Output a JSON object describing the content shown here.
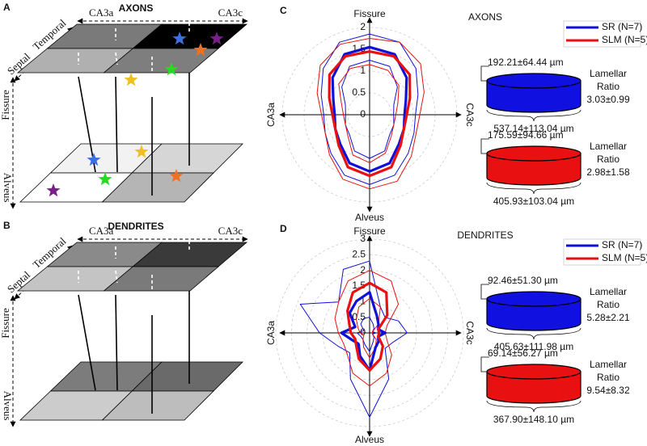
{
  "panel_a": {
    "letter": "A",
    "title": "AXONS",
    "x_start": "CA3a",
    "x_end": "CA3c",
    "depth_start": "Septal",
    "depth_end": "Temporal",
    "z_top": "Fissure",
    "z_bottom": "Alveus"
  },
  "panel_b": {
    "letter": "B",
    "title": "DENDRITES",
    "x_start": "CA3a",
    "x_end": "CA3c",
    "depth_start": "Septal",
    "depth_end": "Temporal",
    "z_top": "Fissure",
    "z_bottom": "Alveus"
  },
  "chart_data": [
    {
      "type": "radar",
      "letter": "C",
      "title": "AXONS",
      "axis_labels": {
        "top": "Fissure",
        "bottom": "Alveus",
        "left": "CA3a",
        "right": "CA3c"
      },
      "rlim": [
        0,
        2
      ],
      "rticks": [
        0,
        0.5,
        1,
        1.5,
        2
      ],
      "series": [
        {
          "name": "SR (N=7)",
          "color": "#1010d8",
          "values": [
            1.55,
            1.5,
            1.2,
            0.9,
            0.8,
            0.85,
            0.95,
            1.2,
            1.3,
            1.2,
            0.95,
            0.85,
            0.8,
            0.9,
            1.2,
            1.5
          ],
          "upper": [
            1.85,
            1.8,
            1.5,
            1.2,
            1.05,
            1.1,
            1.25,
            1.5,
            1.6,
            1.5,
            1.25,
            1.1,
            1.05,
            1.2,
            1.5,
            1.8
          ],
          "lower": [
            1.25,
            1.2,
            0.9,
            0.6,
            0.55,
            0.6,
            0.65,
            0.9,
            1.0,
            0.9,
            0.65,
            0.6,
            0.55,
            0.6,
            0.9,
            1.2
          ]
        },
        {
          "name": "SLM (N=5)",
          "color": "#e81010",
          "values": [
            1.45,
            1.45,
            1.3,
            1.0,
            0.85,
            0.85,
            1.0,
            1.3,
            1.4,
            1.3,
            1.0,
            0.85,
            0.85,
            1.0,
            1.3,
            1.45
          ],
          "upper": [
            1.75,
            1.8,
            1.65,
            1.35,
            1.15,
            1.15,
            1.35,
            1.65,
            1.7,
            1.6,
            1.3,
            1.1,
            1.1,
            1.3,
            1.6,
            1.75
          ],
          "lower": [
            1.15,
            1.1,
            0.95,
            0.7,
            0.6,
            0.6,
            0.7,
            0.95,
            1.1,
            1.0,
            0.7,
            0.6,
            0.6,
            0.7,
            1.0,
            1.15
          ]
        }
      ],
      "cylinders": [
        {
          "color": "#1010e0",
          "height_label": "192.21±64.44 µm",
          "diameter_label": "537.14±113.04 µm",
          "ratio_label": [
            "Lamellar",
            "Ratio"
          ],
          "ratio_value": "3.03±0.99"
        },
        {
          "color": "#e81010",
          "height_label": "175.59±94.66 µm",
          "diameter_label": "405.93±103.04 µm",
          "ratio_label": [
            "Lamellar",
            "Ratio"
          ],
          "ratio_value": "2.98±1.58"
        }
      ]
    },
    {
      "type": "radar",
      "letter": "D",
      "title": "DENDRITES",
      "axis_labels": {
        "top": "Fissure",
        "bottom": "Alveus",
        "left": "CA3a",
        "right": "CA3c"
      },
      "rlim": [
        0,
        3
      ],
      "rticks": [
        0,
        0.5,
        1,
        1.5,
        2,
        2.5,
        3
      ],
      "series": [
        {
          "name": "SR (N=7)",
          "color": "#1010d8",
          "values": [
            1.3,
            0.6,
            0.4,
            0.3,
            0.5,
            0.3,
            0.4,
            0.5,
            1.2,
            0.8,
            0.5,
            0.6,
            0.9,
            0.5,
            0.9,
            1.1
          ],
          "upper": [
            2.3,
            0.9,
            0.7,
            1.0,
            1.2,
            0.8,
            0.7,
            1.6,
            2.7,
            1.6,
            0.9,
            1.1,
            1.6,
            2.4,
            1.4,
            2.2
          ],
          "lower": [
            0.5,
            0.3,
            0.2,
            0.1,
            0.2,
            0.1,
            0.2,
            0.3,
            0.6,
            0.4,
            0.3,
            0.3,
            0.4,
            0.2,
            0.4,
            0.5
          ]
        },
        {
          "name": "SLM (N=5)",
          "color": "#e81010",
          "values": [
            1.6,
            1.4,
            0.8,
            0.3,
            0.3,
            0.3,
            0.6,
            0.9,
            1.2,
            0.9,
            0.6,
            0.5,
            0.6,
            0.7,
            1.0,
            1.4
          ],
          "upper": [
            2.0,
            1.8,
            1.3,
            0.6,
            0.5,
            0.6,
            1.0,
            1.4,
            1.7,
            1.4,
            1.0,
            0.9,
            1.0,
            1.2,
            1.4,
            1.8
          ],
          "lower": [
            1.1,
            0.9,
            0.4,
            0.1,
            0.1,
            0.1,
            0.3,
            0.5,
            0.8,
            0.5,
            0.3,
            0.2,
            0.3,
            0.4,
            0.6,
            0.9
          ]
        }
      ],
      "cylinders": [
        {
          "color": "#1010e0",
          "height_label": "92.46±51.30 µm",
          "diameter_label": "405.63±111.98 µm",
          "ratio_label": [
            "Lamellar",
            "Ratio"
          ],
          "ratio_value": "5.28±2.21"
        },
        {
          "color": "#e81010",
          "height_label": "69.14±56.27 µm",
          "diameter_label": "367.90±148.10 µm",
          "ratio_label": [
            "Lamellar",
            "Ratio"
          ],
          "ratio_value": "9.54±8.32"
        }
      ]
    }
  ]
}
